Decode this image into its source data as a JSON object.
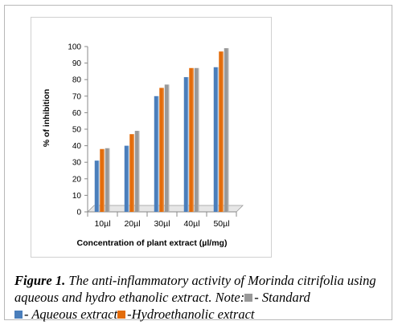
{
  "chart_data": {
    "type": "bar",
    "categories": [
      "10µl",
      "20µl",
      "30µl",
      "40µl",
      "50µl"
    ],
    "series": [
      {
        "name": "Aqueous extract",
        "values": [
          31,
          40,
          70,
          81.5,
          87.5
        ]
      },
      {
        "name": "Hydroethanolic extract",
        "values": [
          38,
          47,
          75,
          87,
          97
        ]
      },
      {
        "name": "Standard",
        "values": [
          38.5,
          49,
          77,
          87,
          99
        ]
      }
    ],
    "title": "",
    "xlabel": "Concentration of plant extract (µl/mg)",
    "ylabel": "% of inhibition",
    "ylim": [
      0,
      100
    ],
    "yticks": [
      "0",
      "10",
      "20",
      "30",
      "40",
      "50",
      "60",
      "70",
      "80",
      "90",
      "100"
    ],
    "grid": false,
    "legend": "none"
  },
  "colors": {
    "aqueous": "#4a7ebb",
    "hydroethanolic": "#e36c0a",
    "standard": "#999999"
  },
  "caption": {
    "figure_label": "Figure 1.",
    "text_1": " The anti-inflammatory activity of ",
    "species": "Morinda citrifolia",
    "text_2": " using aqueous and hydro ethanolic extract. Note:",
    "standard_label": "- Standard",
    "aqueous_label": "- Aqueous extract",
    "hydro_label": "-Hydroethanolic extract"
  }
}
